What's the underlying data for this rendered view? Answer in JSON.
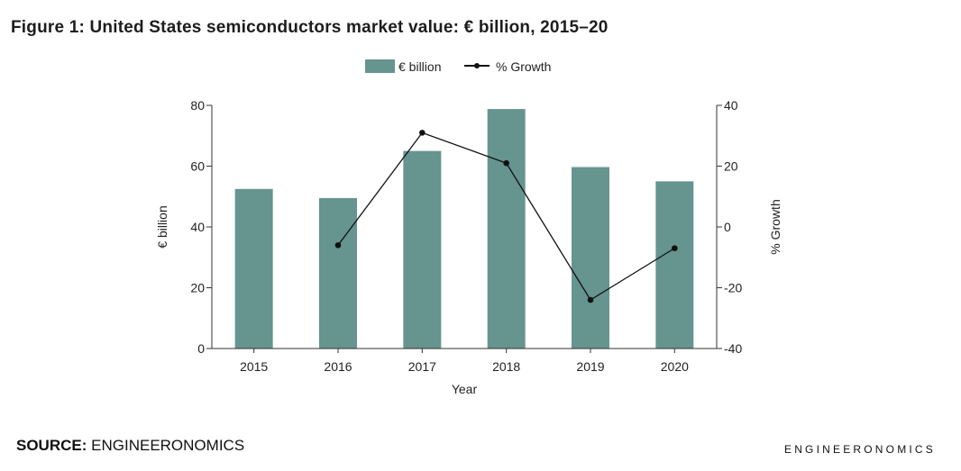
{
  "title": "Figure 1: United States semiconductors market value: € billion, 2015–20",
  "source": {
    "label": "SOURCE:",
    "value": "ENGINEERONOMICS"
  },
  "brand": "ENGINEERONOMICS",
  "colors": {
    "bar": "#66948f",
    "line": "#111111",
    "axis": "#333333"
  },
  "chart_data": {
    "type": "bar",
    "title": "United States semiconductors market value: € billion, 2015–20",
    "categories": [
      "2015",
      "2016",
      "2017",
      "2018",
      "2019",
      "2020"
    ],
    "series": [
      {
        "name": "€ billion",
        "type": "bar",
        "axis": "left",
        "values": [
          52.5,
          49.5,
          65,
          78.8,
          59.7,
          55
        ]
      },
      {
        "name": "% Growth",
        "type": "line",
        "axis": "right",
        "values": [
          null,
          -6,
          31,
          21,
          -24,
          -7
        ]
      }
    ],
    "xlabel": "Year",
    "ylabel": "€ billion",
    "y2label": "% Growth",
    "ylim": [
      0,
      80
    ],
    "y2lim": [
      -40,
      40
    ],
    "yticks": [
      "0",
      "20",
      "40",
      "60",
      "80"
    ],
    "y2ticks": [
      "-40",
      "-20",
      "0",
      "20",
      "40"
    ],
    "legend_position": "top-center",
    "grid": false
  }
}
